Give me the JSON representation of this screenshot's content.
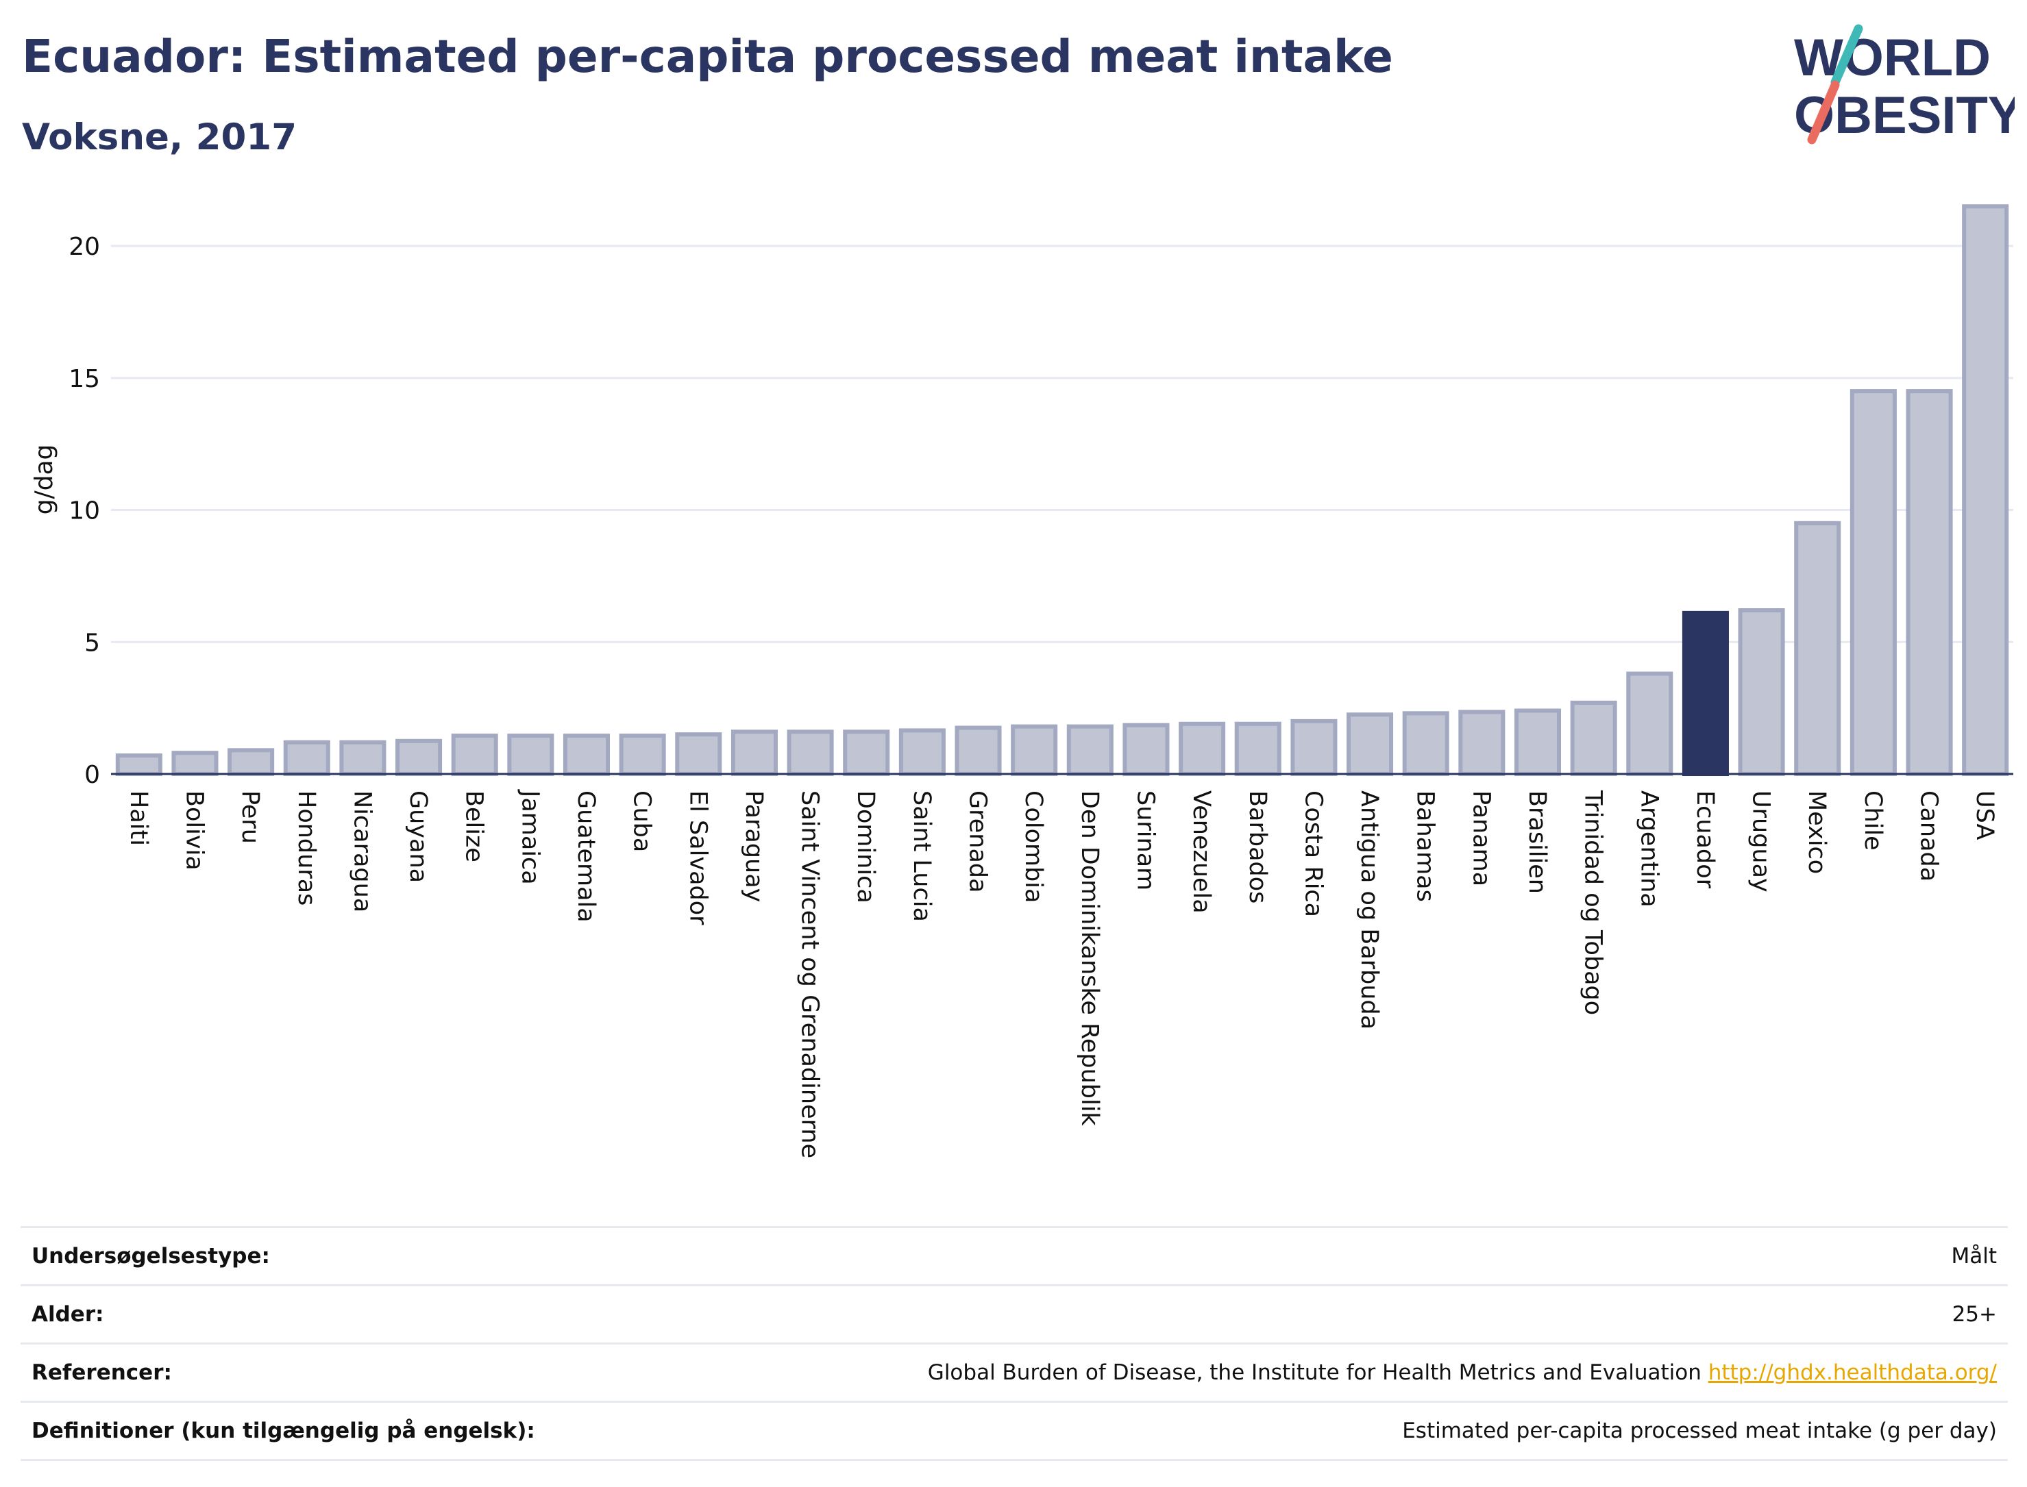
{
  "header": {
    "title": "Ecuador: Estimated per-capita processed meat intake",
    "subtitle": "Voksne, 2017"
  },
  "logo": {
    "line1": "WORLD",
    "line2": "OBESITY"
  },
  "colors": {
    "highlight": "#2b3561",
    "bar_fill": "#c0c4d3",
    "bar_stroke": "#a3a9c1",
    "title": "#2b3561",
    "link": "#e8a700",
    "logo_teal": "#3fb8b8",
    "logo_coral": "#ea6b5f"
  },
  "chart_data": {
    "type": "bar",
    "ylabel": "g/dag",
    "ylim": [
      0,
      22
    ],
    "yticks": [
      0,
      5,
      10,
      15,
      20
    ],
    "grid": true,
    "highlight": "Ecuador",
    "categories": [
      "Haiti",
      "Bolivia",
      "Peru",
      "Honduras",
      "Nicaragua",
      "Guyana",
      "Belize",
      "Jamaica",
      "Guatemala",
      "Cuba",
      "El Salvador",
      "Paraguay",
      "Saint Vincent og Grenadinerne",
      "Dominica",
      "Saint Lucia",
      "Grenada",
      "Colombia",
      "Den Dominikanske Republik",
      "Surinam",
      "Venezuela",
      "Barbados",
      "Costa Rica",
      "Antigua og Barbuda",
      "Bahamas",
      "Panama",
      "Brasilien",
      "Trinidad og Tobago",
      "Argentina",
      "Ecuador",
      "Uruguay",
      "Mexico",
      "Chile",
      "Canada",
      "USA"
    ],
    "values": [
      0.7,
      0.8,
      0.9,
      1.2,
      1.2,
      1.25,
      1.45,
      1.45,
      1.45,
      1.45,
      1.5,
      1.6,
      1.6,
      1.6,
      1.65,
      1.75,
      1.8,
      1.8,
      1.85,
      1.9,
      1.9,
      2.0,
      2.25,
      2.3,
      2.35,
      2.4,
      2.7,
      3.8,
      6.1,
      6.2,
      9.5,
      14.5,
      14.5,
      21.5
    ]
  },
  "info_table": {
    "rows": [
      {
        "label": "Undersøgelsestype:",
        "value": "Målt"
      },
      {
        "label": "Alder:",
        "value": "25+"
      },
      {
        "label": "Referencer:",
        "value": "Global Burden of Disease, the Institute for Health Metrics and Evaluation",
        "link": "http://ghdx.healthdata.org/"
      },
      {
        "label": "Definitioner (kun tilgængelig på engelsk):",
        "value": "Estimated per-capita processed meat intake (g per day)"
      }
    ]
  }
}
